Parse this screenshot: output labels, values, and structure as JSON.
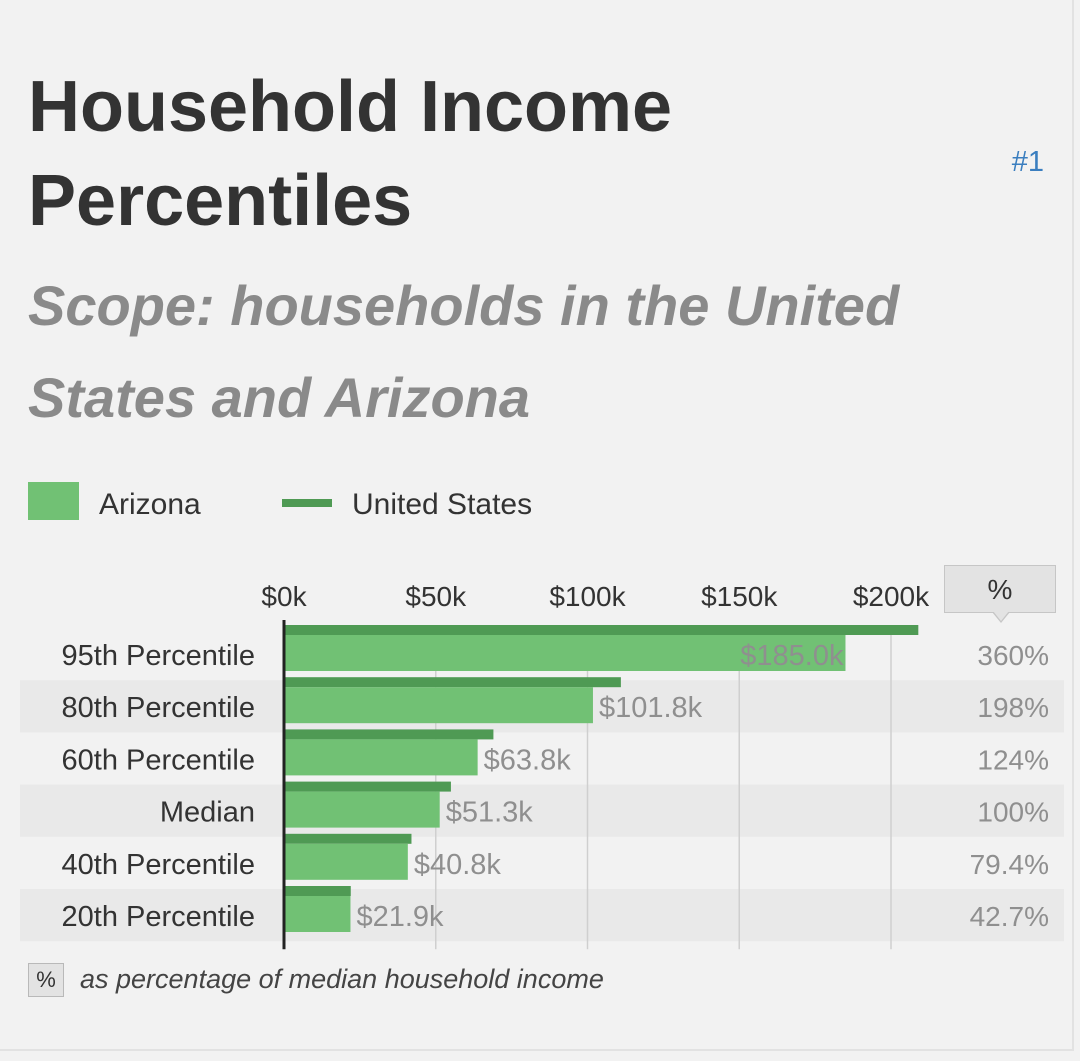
{
  "header": {
    "title": "Household Income Percentiles",
    "rank": "#1",
    "subtitle": "Scope: households in the United States and Arizona"
  },
  "legend": {
    "primary_label": "Arizona",
    "comparison_label": "United States"
  },
  "colors": {
    "primary_bar": "#71c174",
    "comparison_bar": "#4f9a54",
    "row_band": "#e9e9e9",
    "rank_link": "#3a7ebf"
  },
  "percent_column": {
    "header": "%"
  },
  "footnote": {
    "box": "%",
    "text": "as percentage of median household income"
  },
  "chart_data": {
    "type": "bar",
    "orientation": "horizontal",
    "categories": [
      "95th Percentile",
      "80th Percentile",
      "60th Percentile",
      "Median",
      "40th Percentile",
      "20th Percentile"
    ],
    "series": [
      {
        "name": "Arizona",
        "values": [
          185.0,
          101.8,
          63.8,
          51.3,
          40.8,
          21.9
        ]
      },
      {
        "name": "United States",
        "values": [
          209,
          111,
          69,
          55,
          42,
          22
        ]
      }
    ],
    "data_labels": [
      "$185.0k",
      "$101.8k",
      "$63.8k",
      "$51.3k",
      "$40.8k",
      "$21.9k"
    ],
    "percent_of_median": [
      "360%",
      "198%",
      "124%",
      "100%",
      "79.4%",
      "42.7%"
    ],
    "x_ticks": [
      0,
      50,
      100,
      150,
      200
    ],
    "x_tick_labels": [
      "$0k",
      "$50k",
      "$100k",
      "$150k",
      "$200k"
    ],
    "xlim": [
      0,
      220
    ],
    "grid": true,
    "legend_position": "top-left"
  }
}
